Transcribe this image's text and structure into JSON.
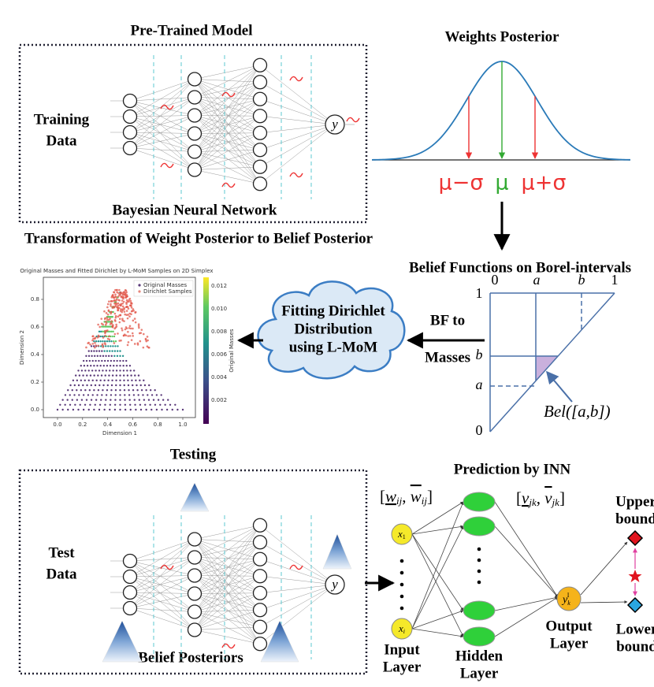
{
  "top_left": {
    "title": "Pre-Trained Model",
    "input_label": [
      "Training",
      "Data"
    ],
    "caption": "Bayesian Neural Network",
    "output": "y"
  },
  "weights_posterior": {
    "title": "Weights Posterior",
    "labels": [
      "μ−σ",
      "μ",
      "μ+σ"
    ]
  },
  "transformation_title": "Transformation of Weight Posterior to Belief Posterior",
  "belief_functions": {
    "title": "Belief Functions on Borel-intervals",
    "top_ticks": [
      "0",
      "a",
      "b",
      "1"
    ],
    "left_ticks": [
      "1",
      "b",
      "a",
      "0"
    ],
    "annotation": "Bel([a,b])"
  },
  "cloud": [
    "Fitting Dirichlet",
    "Distribution",
    "using L-MoM"
  ],
  "arrow_label": [
    "BF to",
    "Masses"
  ],
  "inset_plot": {
    "title": "Original Masses and Fitted Dirichlet by L-MoM Samples on 2D Simplex",
    "legend": [
      "Original Masses",
      "Dirichlet Samples"
    ],
    "xlabel": "Dimension 1",
    "ylabel": "Dimension 2",
    "colorbar_label": "Original Masses",
    "xticks": [
      "0.0",
      "0.2",
      "0.4",
      "0.6",
      "0.8",
      "1.0"
    ],
    "yticks": [
      "0.0",
      "0.2",
      "0.4",
      "0.6",
      "0.8"
    ],
    "colorbar_ticks": [
      "0.012",
      "0.010",
      "0.008",
      "0.006",
      "0.004",
      "0.002"
    ]
  },
  "testing": {
    "title": "Testing",
    "input_label": [
      "Test",
      "Data"
    ],
    "caption": "Belief Posteriors",
    "output": "y"
  },
  "inn": {
    "title": "Prediction by INN",
    "weight_interval": [
      "[",
      "w",
      "ij",
      ", ",
      "w",
      "ij",
      "]"
    ],
    "v_interval": [
      "[",
      "v",
      "jk",
      ", ",
      "v",
      "jk",
      "]"
    ],
    "inputs": [
      [
        "x",
        "1"
      ],
      [
        "x",
        "i"
      ]
    ],
    "output": [
      "y",
      "k",
      "I"
    ],
    "upper": [
      "Upper",
      "bound"
    ],
    "lower": [
      "Lower",
      "bound"
    ],
    "input_layer": [
      "Input",
      "Layer"
    ],
    "hidden_layer": [
      "Hidden",
      "Layer"
    ],
    "output_layer": [
      "Output",
      "Layer"
    ]
  }
}
